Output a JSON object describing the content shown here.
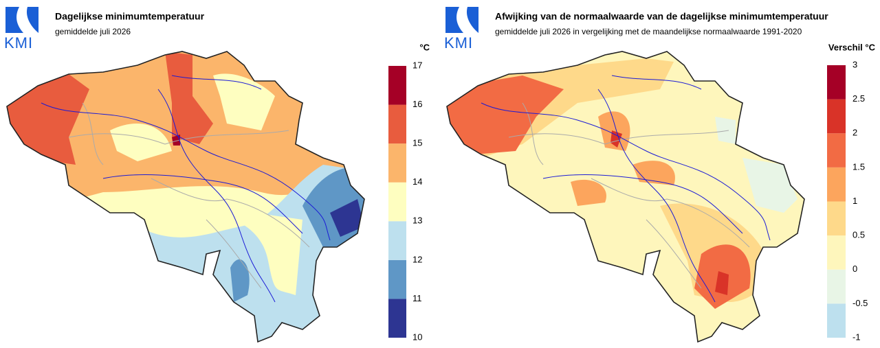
{
  "panels": [
    {
      "logo": "KMI",
      "title": "Dagelijkse minimumtemperatuur",
      "subtitle": "gemiddelde juli 2026",
      "legend": {
        "unit": "°C",
        "ticks": [
          10,
          11,
          12,
          13,
          14,
          15,
          16,
          17
        ],
        "colors": [
          "#2d3592",
          "#5f97c6",
          "#bde0ee",
          "#fefec0",
          "#fbb56b",
          "#e85c3e",
          "#a50026"
        ]
      }
    },
    {
      "logo": "KMI",
      "title": "Afwijking van de normaalwaarde van de dagelijkse minimumtemperatuur",
      "subtitle": "gemiddelde juli 2026 in vergelijking met de maandelijkse normaalwaarde 1991-2020",
      "legend": {
        "unit": "Verschil °C",
        "ticks": [
          -1,
          -0.5,
          0,
          0.5,
          1,
          1.5,
          2,
          2.5,
          3
        ],
        "colors": [
          "#bde0ee",
          "#e8f5e6",
          "#fef6bc",
          "#fed98a",
          "#fca55d",
          "#f26b44",
          "#d93328",
          "#a50026"
        ]
      }
    }
  ]
}
